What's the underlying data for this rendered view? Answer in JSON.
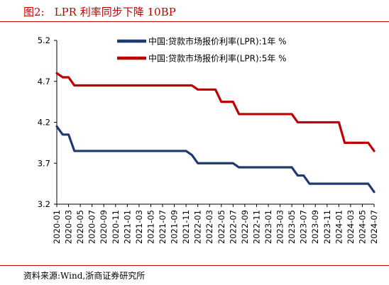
{
  "figure": {
    "label": "图2:",
    "title": "LPR 利率同步下降 10BP",
    "source": "资料来源:Wind,浙商证券研究所"
  },
  "colors": {
    "rule": "#c00000",
    "title": "#c00000"
  },
  "chart_data": {
    "type": "line",
    "title": "LPR 利率同步下降 10BP",
    "xlabel": "",
    "ylabel": "",
    "ylim": [
      3.2,
      5.2
    ],
    "yticks": [
      3.2,
      3.7,
      4.2,
      4.7,
      5.2
    ],
    "yticks_labels": [
      "3.2",
      "3.7",
      "4.2",
      "4.7",
      "5.2"
    ],
    "grid": false,
    "legend_position": "top-right",
    "x": [
      "2020-01",
      "2020-02",
      "2020-03",
      "2020-04",
      "2020-05",
      "2020-06",
      "2020-07",
      "2020-08",
      "2020-09",
      "2020-10",
      "2020-11",
      "2020-12",
      "2021-01",
      "2021-02",
      "2021-03",
      "2021-04",
      "2021-05",
      "2021-06",
      "2021-07",
      "2021-08",
      "2021-09",
      "2021-10",
      "2021-11",
      "2021-12",
      "2022-01",
      "2022-02",
      "2022-03",
      "2022-04",
      "2022-05",
      "2022-06",
      "2022-07",
      "2022-08",
      "2022-09",
      "2022-10",
      "2022-11",
      "2022-12",
      "2023-01",
      "2023-02",
      "2023-03",
      "2023-04",
      "2023-05",
      "2023-06",
      "2023-07",
      "2023-08",
      "2023-09",
      "2023-10",
      "2023-11",
      "2023-12",
      "2024-01",
      "2024-02",
      "2024-03",
      "2024-04",
      "2024-05",
      "2024-06",
      "2024-07"
    ],
    "xtick_labels": [
      "2020-01",
      "2020-03",
      "2020-05",
      "2020-07",
      "2020-09",
      "2020-11",
      "2021-01",
      "2021-03",
      "2021-05",
      "2021-07",
      "2021-09",
      "2021-11",
      "2022-01",
      "2022-03",
      "2022-05",
      "2022-07",
      "2022-09",
      "2022-11",
      "2023-01",
      "2023-03",
      "2023-05",
      "2023-07",
      "2023-09",
      "2023-11",
      "2024-01",
      "2024-03",
      "2024-05",
      "2024-07"
    ],
    "series": [
      {
        "name": "中国:贷款市场报价利率(LPR):1年 %",
        "color": "#1f3a6e",
        "values": [
          4.15,
          4.05,
          4.05,
          3.85,
          3.85,
          3.85,
          3.85,
          3.85,
          3.85,
          3.85,
          3.85,
          3.85,
          3.85,
          3.85,
          3.85,
          3.85,
          3.85,
          3.85,
          3.85,
          3.85,
          3.85,
          3.85,
          3.85,
          3.8,
          3.7,
          3.7,
          3.7,
          3.7,
          3.7,
          3.7,
          3.7,
          3.65,
          3.65,
          3.65,
          3.65,
          3.65,
          3.65,
          3.65,
          3.65,
          3.65,
          3.65,
          3.55,
          3.55,
          3.45,
          3.45,
          3.45,
          3.45,
          3.45,
          3.45,
          3.45,
          3.45,
          3.45,
          3.45,
          3.45,
          3.35
        ]
      },
      {
        "name": "中国:贷款市场报价利率(LPR):5年 %",
        "color": "#c00000",
        "values": [
          4.8,
          4.75,
          4.75,
          4.65,
          4.65,
          4.65,
          4.65,
          4.65,
          4.65,
          4.65,
          4.65,
          4.65,
          4.65,
          4.65,
          4.65,
          4.65,
          4.65,
          4.65,
          4.65,
          4.65,
          4.65,
          4.65,
          4.65,
          4.65,
          4.6,
          4.6,
          4.6,
          4.6,
          4.45,
          4.45,
          4.45,
          4.3,
          4.3,
          4.3,
          4.3,
          4.3,
          4.3,
          4.3,
          4.3,
          4.3,
          4.3,
          4.2,
          4.2,
          4.2,
          4.2,
          4.2,
          4.2,
          4.2,
          4.2,
          3.95,
          3.95,
          3.95,
          3.95,
          3.95,
          3.85
        ]
      }
    ]
  }
}
